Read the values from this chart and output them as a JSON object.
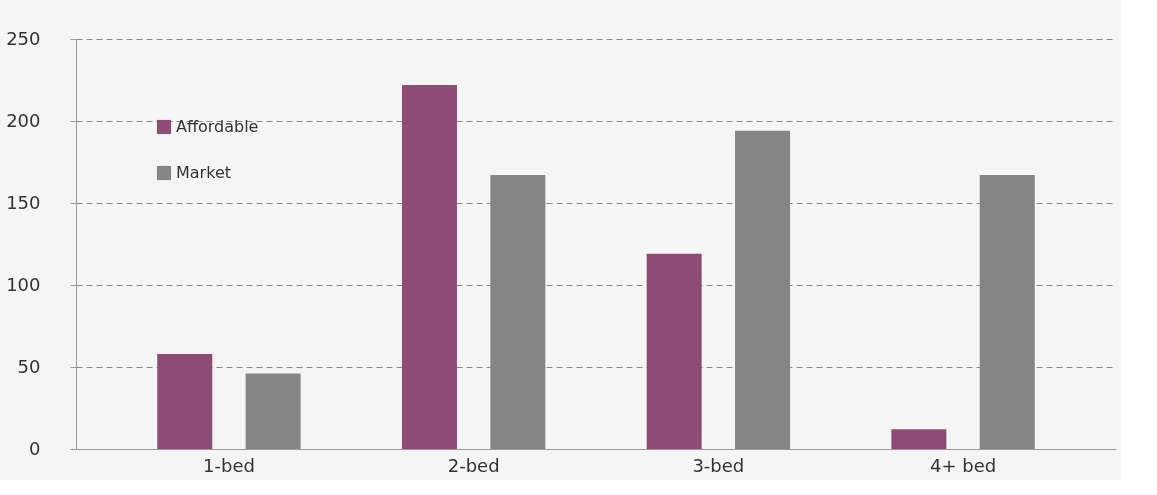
{
  "chart_data": {
    "type": "bar",
    "categories": [
      "1-bed",
      "2-bed",
      "3-bed",
      "4+ bed"
    ],
    "series": [
      {
        "name": "Affordable",
        "color": "#8e4b75",
        "values": [
          58,
          222,
          119,
          12
        ]
      },
      {
        "name": "Market",
        "color": "#858585",
        "values": [
          46,
          167,
          194,
          167
        ]
      }
    ],
    "ylim": [
      0,
      250
    ],
    "yticks": [
      0,
      50,
      100,
      150,
      200,
      250
    ],
    "grid": "y",
    "legend": "top left"
  }
}
